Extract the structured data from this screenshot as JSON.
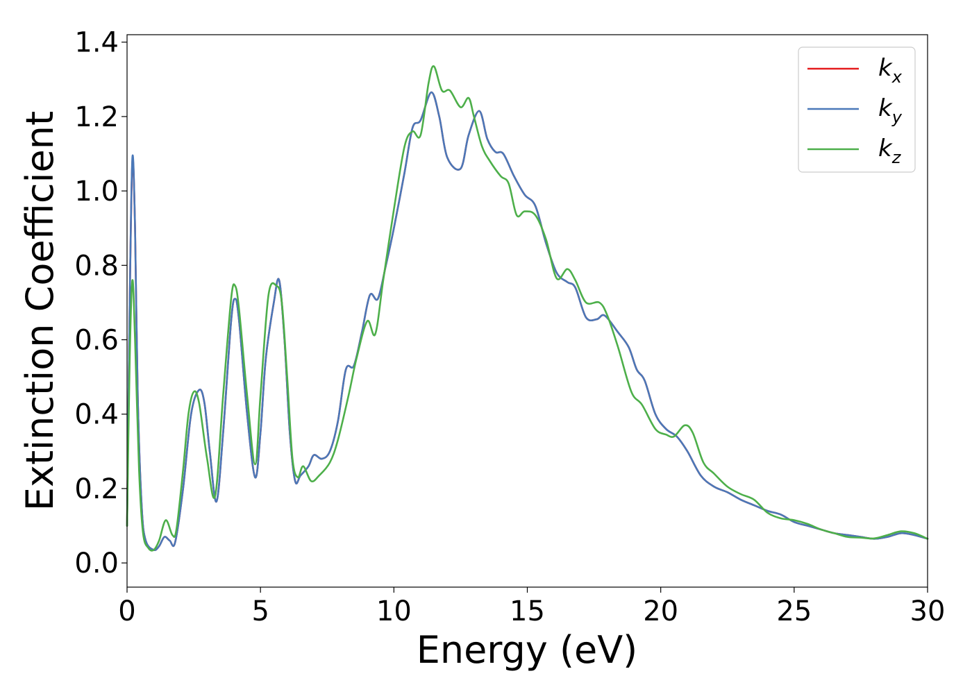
{
  "chart_data": {
    "type": "line",
    "title": "",
    "xlabel": "Energy (eV)",
    "ylabel": "Extinction Coefficient",
    "xlim": [
      0,
      30
    ],
    "ylim": [
      -0.065,
      1.42
    ],
    "xticks": [
      0,
      5,
      10,
      15,
      20,
      25,
      30
    ],
    "xtick_labels": [
      "0",
      "5",
      "10",
      "15",
      "20",
      "25",
      "30"
    ],
    "yticks": [
      0.0,
      0.2,
      0.4,
      0.6,
      0.8,
      1.0,
      1.2,
      1.4
    ],
    "ytick_labels": [
      "0.0",
      "0.2",
      "0.4",
      "0.6",
      "0.8",
      "1.0",
      "1.2",
      "1.4"
    ],
    "grid": false,
    "legend_position": "top-right",
    "series": [
      {
        "name": "k",
        "subscript": "x",
        "color": "#e41a1c",
        "points": [
          [
            0.0,
            0.1
          ],
          [
            0.1,
            0.7
          ],
          [
            0.2,
            1.08
          ],
          [
            0.3,
            0.9
          ],
          [
            0.4,
            0.45
          ],
          [
            0.55,
            0.15
          ],
          [
            0.7,
            0.06
          ],
          [
            1.0,
            0.035
          ],
          [
            1.2,
            0.045
          ],
          [
            1.4,
            0.07
          ],
          [
            1.6,
            0.06
          ],
          [
            1.8,
            0.055
          ],
          [
            2.1,
            0.2
          ],
          [
            2.4,
            0.4
          ],
          [
            2.7,
            0.465
          ],
          [
            2.9,
            0.43
          ],
          [
            3.1,
            0.3
          ],
          [
            3.35,
            0.165
          ],
          [
            3.6,
            0.35
          ],
          [
            3.9,
            0.65
          ],
          [
            4.05,
            0.71
          ],
          [
            4.2,
            0.65
          ],
          [
            4.5,
            0.4
          ],
          [
            4.8,
            0.23
          ],
          [
            5.0,
            0.35
          ],
          [
            5.2,
            0.55
          ],
          [
            5.5,
            0.7
          ],
          [
            5.7,
            0.76
          ],
          [
            5.9,
            0.6
          ],
          [
            6.1,
            0.35
          ],
          [
            6.3,
            0.22
          ],
          [
            6.5,
            0.235
          ],
          [
            6.8,
            0.26
          ],
          [
            7.0,
            0.29
          ],
          [
            7.3,
            0.28
          ],
          [
            7.6,
            0.3
          ],
          [
            7.9,
            0.38
          ],
          [
            8.2,
            0.52
          ],
          [
            8.5,
            0.53
          ],
          [
            8.8,
            0.62
          ],
          [
            9.1,
            0.72
          ],
          [
            9.4,
            0.71
          ],
          [
            9.7,
            0.8
          ],
          [
            10.0,
            0.9
          ],
          [
            10.4,
            1.05
          ],
          [
            10.7,
            1.17
          ],
          [
            11.0,
            1.19
          ],
          [
            11.4,
            1.265
          ],
          [
            11.7,
            1.2
          ],
          [
            12.0,
            1.09
          ],
          [
            12.5,
            1.06
          ],
          [
            12.8,
            1.15
          ],
          [
            13.2,
            1.215
          ],
          [
            13.5,
            1.14
          ],
          [
            13.8,
            1.105
          ],
          [
            14.1,
            1.1
          ],
          [
            14.5,
            1.04
          ],
          [
            14.9,
            0.99
          ],
          [
            15.3,
            0.96
          ],
          [
            15.7,
            0.86
          ],
          [
            16.1,
            0.78
          ],
          [
            16.5,
            0.755
          ],
          [
            16.8,
            0.74
          ],
          [
            17.2,
            0.66
          ],
          [
            17.6,
            0.655
          ],
          [
            17.9,
            0.665
          ],
          [
            18.4,
            0.62
          ],
          [
            18.8,
            0.58
          ],
          [
            19.1,
            0.52
          ],
          [
            19.4,
            0.49
          ],
          [
            19.8,
            0.4
          ],
          [
            20.2,
            0.36
          ],
          [
            20.6,
            0.34
          ],
          [
            21.0,
            0.3
          ],
          [
            21.5,
            0.235
          ],
          [
            22.0,
            0.205
          ],
          [
            22.5,
            0.19
          ],
          [
            23.0,
            0.17
          ],
          [
            23.5,
            0.155
          ],
          [
            24.0,
            0.14
          ],
          [
            24.5,
            0.13
          ],
          [
            25.0,
            0.11
          ],
          [
            25.5,
            0.1
          ],
          [
            26.0,
            0.09
          ],
          [
            26.5,
            0.08
          ],
          [
            27.0,
            0.075
          ],
          [
            27.5,
            0.07
          ],
          [
            28.0,
            0.065
          ],
          [
            28.5,
            0.07
          ],
          [
            29.0,
            0.08
          ],
          [
            29.5,
            0.075
          ],
          [
            30.0,
            0.065
          ]
        ]
      },
      {
        "name": "k",
        "subscript": "y",
        "color": "#4a78b8",
        "points": [
          [
            0.0,
            0.1
          ],
          [
            0.1,
            0.7
          ],
          [
            0.2,
            1.09
          ],
          [
            0.3,
            0.9
          ],
          [
            0.4,
            0.45
          ],
          [
            0.55,
            0.15
          ],
          [
            0.7,
            0.06
          ],
          [
            1.0,
            0.035
          ],
          [
            1.2,
            0.045
          ],
          [
            1.4,
            0.07
          ],
          [
            1.6,
            0.06
          ],
          [
            1.8,
            0.055
          ],
          [
            2.1,
            0.2
          ],
          [
            2.4,
            0.4
          ],
          [
            2.7,
            0.465
          ],
          [
            2.9,
            0.43
          ],
          [
            3.1,
            0.3
          ],
          [
            3.35,
            0.165
          ],
          [
            3.6,
            0.35
          ],
          [
            3.9,
            0.65
          ],
          [
            4.05,
            0.71
          ],
          [
            4.2,
            0.65
          ],
          [
            4.5,
            0.4
          ],
          [
            4.8,
            0.23
          ],
          [
            5.0,
            0.35
          ],
          [
            5.2,
            0.55
          ],
          [
            5.5,
            0.7
          ],
          [
            5.7,
            0.76
          ],
          [
            5.9,
            0.6
          ],
          [
            6.1,
            0.35
          ],
          [
            6.3,
            0.22
          ],
          [
            6.5,
            0.235
          ],
          [
            6.8,
            0.26
          ],
          [
            7.0,
            0.29
          ],
          [
            7.3,
            0.28
          ],
          [
            7.6,
            0.3
          ],
          [
            7.9,
            0.38
          ],
          [
            8.2,
            0.52
          ],
          [
            8.5,
            0.53
          ],
          [
            8.8,
            0.62
          ],
          [
            9.1,
            0.72
          ],
          [
            9.4,
            0.71
          ],
          [
            9.7,
            0.8
          ],
          [
            10.0,
            0.9
          ],
          [
            10.4,
            1.05
          ],
          [
            10.7,
            1.17
          ],
          [
            11.0,
            1.19
          ],
          [
            11.4,
            1.265
          ],
          [
            11.7,
            1.2
          ],
          [
            12.0,
            1.09
          ],
          [
            12.5,
            1.06
          ],
          [
            12.8,
            1.15
          ],
          [
            13.2,
            1.215
          ],
          [
            13.5,
            1.14
          ],
          [
            13.8,
            1.105
          ],
          [
            14.1,
            1.1
          ],
          [
            14.5,
            1.04
          ],
          [
            14.9,
            0.99
          ],
          [
            15.3,
            0.96
          ],
          [
            15.7,
            0.86
          ],
          [
            16.1,
            0.78
          ],
          [
            16.5,
            0.755
          ],
          [
            16.8,
            0.74
          ],
          [
            17.2,
            0.66
          ],
          [
            17.6,
            0.655
          ],
          [
            17.9,
            0.665
          ],
          [
            18.4,
            0.62
          ],
          [
            18.8,
            0.58
          ],
          [
            19.1,
            0.52
          ],
          [
            19.4,
            0.49
          ],
          [
            19.8,
            0.4
          ],
          [
            20.2,
            0.36
          ],
          [
            20.6,
            0.34
          ],
          [
            21.0,
            0.3
          ],
          [
            21.5,
            0.235
          ],
          [
            22.0,
            0.205
          ],
          [
            22.5,
            0.19
          ],
          [
            23.0,
            0.17
          ],
          [
            23.5,
            0.155
          ],
          [
            24.0,
            0.14
          ],
          [
            24.5,
            0.13
          ],
          [
            25.0,
            0.11
          ],
          [
            25.5,
            0.1
          ],
          [
            26.0,
            0.09
          ],
          [
            26.5,
            0.08
          ],
          [
            27.0,
            0.075
          ],
          [
            27.5,
            0.07
          ],
          [
            28.0,
            0.065
          ],
          [
            28.5,
            0.07
          ],
          [
            29.0,
            0.08
          ],
          [
            29.5,
            0.075
          ],
          [
            30.0,
            0.065
          ]
        ]
      },
      {
        "name": "k",
        "subscript": "z",
        "color": "#4daf4a",
        "points": [
          [
            0.0,
            0.1
          ],
          [
            0.1,
            0.55
          ],
          [
            0.2,
            0.76
          ],
          [
            0.3,
            0.6
          ],
          [
            0.45,
            0.25
          ],
          [
            0.6,
            0.08
          ],
          [
            0.8,
            0.04
          ],
          [
            1.0,
            0.035
          ],
          [
            1.2,
            0.06
          ],
          [
            1.45,
            0.115
          ],
          [
            1.7,
            0.075
          ],
          [
            1.85,
            0.09
          ],
          [
            2.1,
            0.25
          ],
          [
            2.3,
            0.4
          ],
          [
            2.5,
            0.46
          ],
          [
            2.7,
            0.43
          ],
          [
            3.0,
            0.28
          ],
          [
            3.3,
            0.18
          ],
          [
            3.6,
            0.45
          ],
          [
            3.9,
            0.71
          ],
          [
            4.05,
            0.745
          ],
          [
            4.2,
            0.68
          ],
          [
            4.5,
            0.45
          ],
          [
            4.8,
            0.265
          ],
          [
            5.0,
            0.45
          ],
          [
            5.3,
            0.72
          ],
          [
            5.6,
            0.745
          ],
          [
            5.8,
            0.7
          ],
          [
            6.0,
            0.5
          ],
          [
            6.2,
            0.28
          ],
          [
            6.4,
            0.23
          ],
          [
            6.6,
            0.26
          ],
          [
            6.9,
            0.22
          ],
          [
            7.2,
            0.235
          ],
          [
            7.6,
            0.27
          ],
          [
            7.9,
            0.33
          ],
          [
            8.3,
            0.45
          ],
          [
            8.6,
            0.55
          ],
          [
            9.0,
            0.65
          ],
          [
            9.3,
            0.615
          ],
          [
            9.6,
            0.76
          ],
          [
            10.0,
            0.95
          ],
          [
            10.4,
            1.12
          ],
          [
            10.7,
            1.16
          ],
          [
            11.0,
            1.15
          ],
          [
            11.3,
            1.29
          ],
          [
            11.5,
            1.335
          ],
          [
            11.8,
            1.27
          ],
          [
            12.1,
            1.27
          ],
          [
            12.5,
            1.225
          ],
          [
            12.8,
            1.25
          ],
          [
            13.0,
            1.2
          ],
          [
            13.3,
            1.12
          ],
          [
            13.6,
            1.08
          ],
          [
            14.0,
            1.04
          ],
          [
            14.3,
            1.02
          ],
          [
            14.6,
            0.935
          ],
          [
            14.9,
            0.945
          ],
          [
            15.3,
            0.935
          ],
          [
            15.7,
            0.87
          ],
          [
            16.1,
            0.765
          ],
          [
            16.5,
            0.79
          ],
          [
            16.8,
            0.76
          ],
          [
            17.2,
            0.7
          ],
          [
            17.7,
            0.7
          ],
          [
            18.0,
            0.665
          ],
          [
            18.4,
            0.58
          ],
          [
            18.9,
            0.46
          ],
          [
            19.3,
            0.425
          ],
          [
            19.8,
            0.36
          ],
          [
            20.2,
            0.345
          ],
          [
            20.5,
            0.34
          ],
          [
            20.9,
            0.37
          ],
          [
            21.2,
            0.35
          ],
          [
            21.6,
            0.27
          ],
          [
            22.0,
            0.24
          ],
          [
            22.5,
            0.205
          ],
          [
            23.0,
            0.185
          ],
          [
            23.5,
            0.17
          ],
          [
            24.0,
            0.135
          ],
          [
            24.5,
            0.12
          ],
          [
            25.0,
            0.115
          ],
          [
            25.5,
            0.105
          ],
          [
            26.0,
            0.09
          ],
          [
            26.5,
            0.08
          ],
          [
            27.0,
            0.07
          ],
          [
            27.5,
            0.068
          ],
          [
            28.0,
            0.066
          ],
          [
            28.5,
            0.075
          ],
          [
            29.0,
            0.085
          ],
          [
            29.5,
            0.08
          ],
          [
            30.0,
            0.065
          ]
        ]
      }
    ]
  }
}
